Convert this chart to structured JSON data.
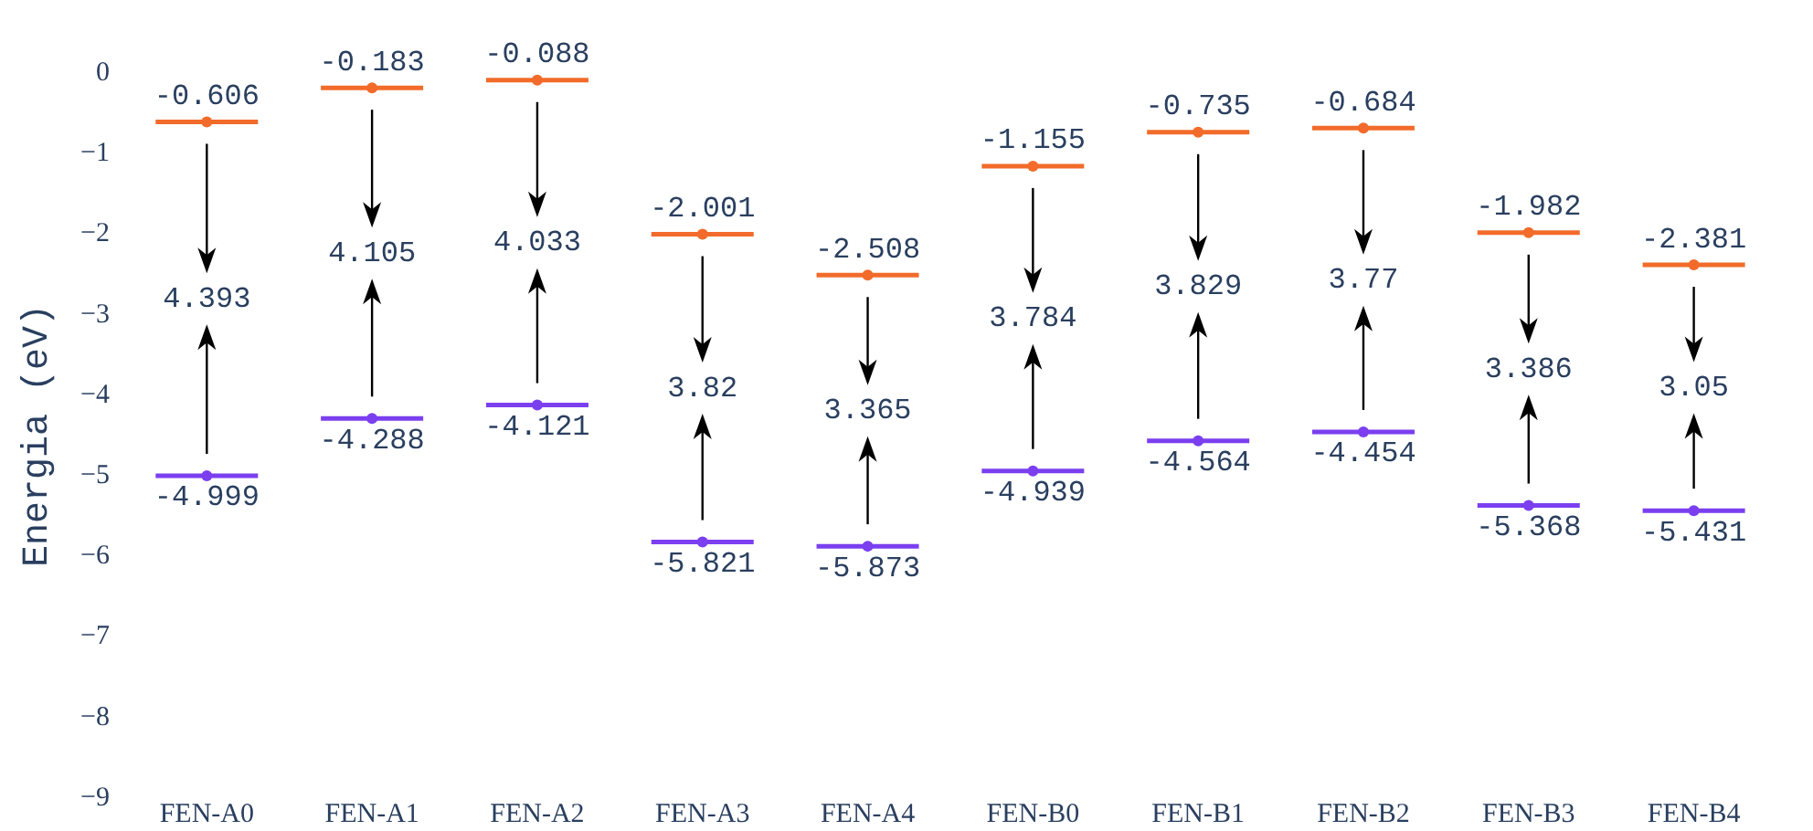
{
  "chart_data": {
    "type": "scatter",
    "ylabel": "Energia (eV)",
    "categories": [
      "FEN-A0",
      "FEN-A1",
      "FEN-A2",
      "FEN-A3",
      "FEN-A4",
      "FEN-B0",
      "FEN-B1",
      "FEN-B2",
      "FEN-B3",
      "FEN-B4"
    ],
    "series": [
      {
        "color": "#f26b2a",
        "values": [
          -0.606,
          -0.183,
          -0.088,
          -2.001,
          -2.508,
          -1.155,
          -0.735,
          -0.684,
          -1.982,
          -2.381
        ]
      },
      {
        "color": "#7b3ff0",
        "values": [
          -4.999,
          -4.288,
          -4.121,
          -5.821,
          -5.873,
          -4.939,
          -4.564,
          -4.454,
          -5.368,
          -5.431
        ]
      }
    ],
    "data_labels": true,
    "annotations": [
      "4.393",
      "4.105",
      "4.033",
      "3.82",
      "3.365",
      "3.784",
      "3.829",
      "3.77",
      "3.386",
      "3.05"
    ],
    "ylim": [
      -9,
      0
    ],
    "yticks": [
      0,
      {
        "value": -1,
        "label": "−1"
      },
      {
        "value": -2,
        "label": "−2"
      },
      {
        "value": -3,
        "label": "−3"
      },
      {
        "value": -4,
        "label": "−4"
      },
      {
        "value": -5,
        "label": "−5"
      },
      {
        "value": -6,
        "label": "−6"
      },
      {
        "value": -7,
        "label": "−7"
      },
      {
        "value": -8,
        "label": "−8"
      },
      {
        "value": -9,
        "label": "−9"
      }
    ],
    "grid": false,
    "legend": false
  }
}
